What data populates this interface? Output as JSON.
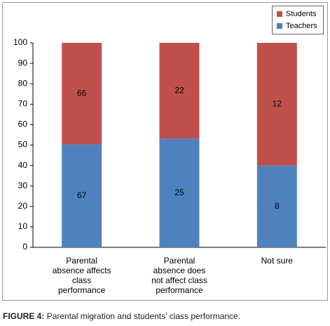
{
  "chart_data": {
    "type": "bar",
    "stacking": "percent",
    "categories": [
      "Parental absence affects class performance",
      "Parental absence does not affect class performance",
      "Not sure"
    ],
    "series": [
      {
        "name": "Teachers",
        "color": "#4f81bd",
        "values": [
          67,
          25,
          8
        ]
      },
      {
        "name": "Students",
        "color": "#c0504d",
        "values": [
          66,
          22,
          12
        ]
      }
    ],
    "ylim": [
      0,
      100
    ],
    "yticks": [
      0,
      10,
      20,
      30,
      40,
      50,
      60,
      70,
      80,
      90,
      100
    ],
    "legend": "top-right",
    "caption_label": "FIGURE 4:",
    "caption": "Parental migration and students’ class performance."
  }
}
